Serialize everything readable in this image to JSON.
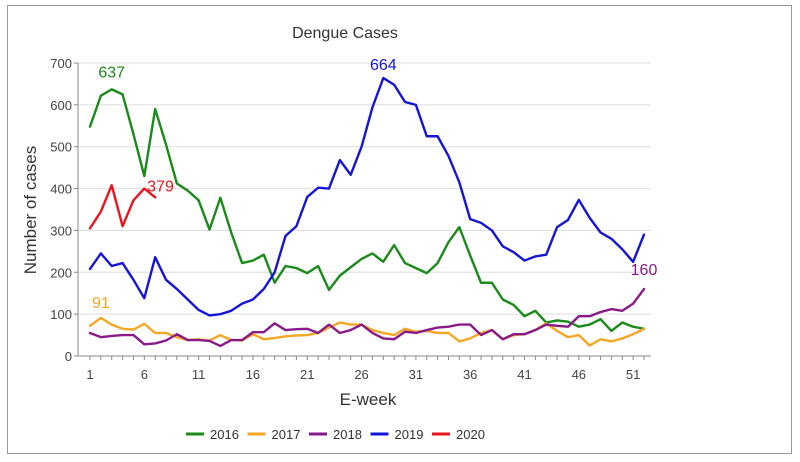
{
  "chart_data": {
    "type": "line",
    "title": "Dengue Cases",
    "xlabel": "E-week",
    "ylabel": "Number of cases",
    "xlim": [
      1,
      52
    ],
    "ylim": [
      0,
      700
    ],
    "grid": true,
    "legend_position": "bottom",
    "x_ticks": [
      1,
      6,
      11,
      16,
      21,
      26,
      31,
      36,
      41,
      46,
      51
    ],
    "y_ticks": [
      0,
      100,
      200,
      300,
      400,
      500,
      600,
      700
    ],
    "x": [
      1,
      2,
      3,
      4,
      5,
      6,
      7,
      8,
      9,
      10,
      11,
      12,
      13,
      14,
      15,
      16,
      17,
      18,
      19,
      20,
      21,
      22,
      23,
      24,
      25,
      26,
      27,
      28,
      29,
      30,
      31,
      32,
      33,
      34,
      35,
      36,
      37,
      38,
      39,
      40,
      41,
      42,
      43,
      44,
      45,
      46,
      47,
      48,
      49,
      50,
      51,
      52
    ],
    "series": [
      {
        "name": "2016",
        "color": "#1a8a1a",
        "values": [
          548,
          622,
          637,
          625,
          530,
          430,
          590,
          505,
          412,
          395,
          372,
          302,
          378,
          295,
          222,
          228,
          242,
          175,
          215,
          210,
          198,
          215,
          158,
          192,
          212,
          232,
          245,
          225,
          265,
          222,
          210,
          198,
          222,
          272,
          308,
          240,
          175,
          175,
          135,
          122,
          95,
          108,
          80,
          85,
          82,
          70,
          75,
          88,
          60,
          80,
          70,
          65
        ],
        "annotation": {
          "week": 3,
          "text": "637"
        }
      },
      {
        "name": "2017",
        "color": "#f5a623",
        "values": [
          72,
          91,
          75,
          65,
          63,
          77,
          55,
          55,
          45,
          38,
          40,
          37,
          50,
          38,
          37,
          52,
          40,
          43,
          47,
          49,
          50,
          55,
          68,
          80,
          75,
          75,
          62,
          55,
          50,
          65,
          58,
          60,
          55,
          55,
          35,
          42,
          55,
          62,
          40,
          50,
          52,
          62,
          78,
          60,
          45,
          50,
          25,
          40,
          35,
          42,
          52,
          65
        ],
        "annotation": {
          "week": 2,
          "text": "91"
        }
      },
      {
        "name": "2018",
        "color": "#8a1a8a",
        "values": [
          55,
          45,
          48,
          50,
          50,
          28,
          30,
          37,
          52,
          38,
          38,
          36,
          24,
          38,
          38,
          57,
          57,
          78,
          62,
          64,
          65,
          55,
          75,
          55,
          62,
          75,
          55,
          42,
          40,
          58,
          55,
          62,
          68,
          70,
          75,
          75,
          50,
          62,
          40,
          52,
          52,
          62,
          75,
          72,
          70,
          95,
          95,
          105,
          112,
          108,
          125,
          160
        ],
        "annotation": {
          "week": 52,
          "text": "160"
        }
      },
      {
        "name": "2019",
        "color": "#1515d8",
        "values": [
          208,
          245,
          215,
          222,
          182,
          138,
          236,
          182,
          160,
          135,
          110,
          97,
          100,
          108,
          125,
          135,
          160,
          200,
          287,
          310,
          380,
          402,
          400,
          468,
          433,
          500,
          594,
          664,
          648,
          607,
          600,
          525,
          525,
          478,
          415,
          327,
          318,
          300,
          262,
          248,
          228,
          238,
          242,
          308,
          325,
          373,
          330,
          295,
          280,
          255,
          225,
          290
        ],
        "annotation": {
          "week": 28,
          "text": "664"
        }
      },
      {
        "name": "2020",
        "color": "#e8141e",
        "values": [
          305,
          345,
          408,
          310,
          372,
          400,
          379
        ],
        "annotation": {
          "week": 7,
          "text": "379"
        }
      }
    ]
  }
}
